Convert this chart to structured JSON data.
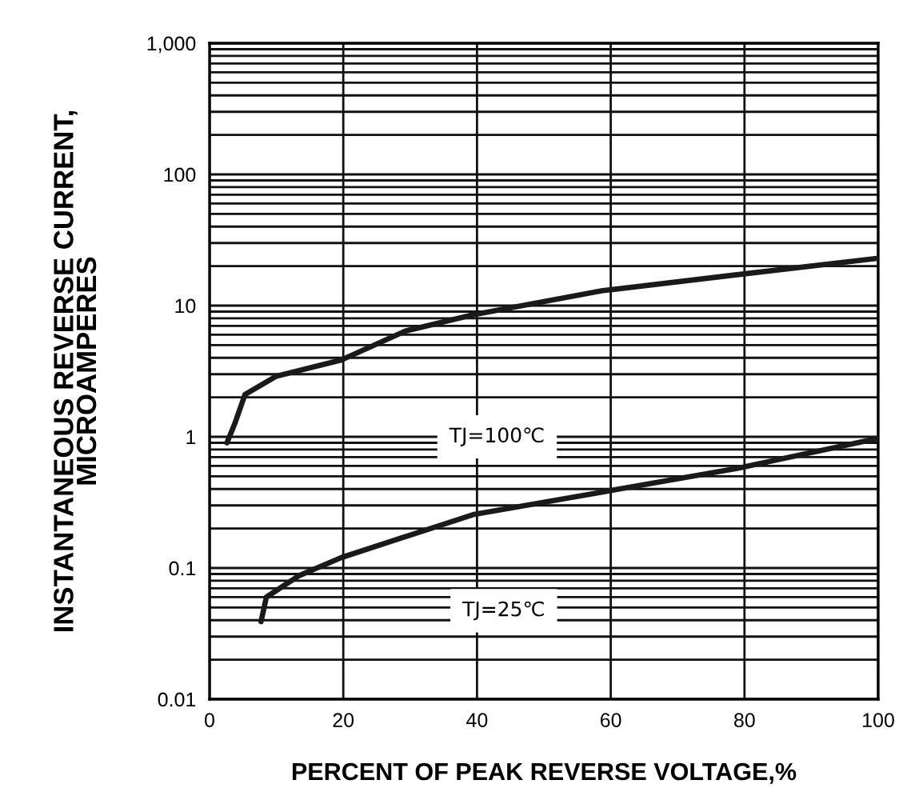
{
  "chart_data": {
    "type": "line",
    "xlabel": "PERCENT OF PEAK REVERSE VOLTAGE,%",
    "ylabel": "INSTANTANEOUS REVERSE CURRENT,\nMICROAMPERES",
    "series": [
      {
        "color": "#1a1a1a",
        "x": [
          2.6,
          3.75,
          5.3,
          10,
          19.7,
          29.3,
          39.4,
          58.8,
          78.9,
          99.8
        ],
        "values": [
          0.9,
          1.25,
          2.1,
          2.9,
          3.85,
          6.4,
          8.5,
          13,
          17.2,
          22.9
        ]
      },
      {
        "color": "#1a1a1a",
        "x": [
          7.7,
          8.5,
          13.3,
          19.7,
          39.4,
          58.8,
          78.9,
          99.8
        ],
        "values": [
          0.039,
          0.06,
          0.087,
          0.12,
          0.255,
          0.38,
          0.575,
          0.97
        ]
      }
    ],
    "annotations": [
      "TJ=100℃",
      "TJ=25℃"
    ],
    "log": "y",
    "xlim": [
      0,
      100
    ],
    "xticks": [
      0,
      20,
      40,
      60,
      80,
      100
    ],
    "ylim": [
      0.01,
      1000
    ],
    "yticks": [
      0.01,
      0.1,
      1,
      10,
      100,
      {
        "value": 1000,
        "label": "1,000"
      }
    ],
    "grid": true,
    "line_style": "solid",
    "marker": "none"
  }
}
